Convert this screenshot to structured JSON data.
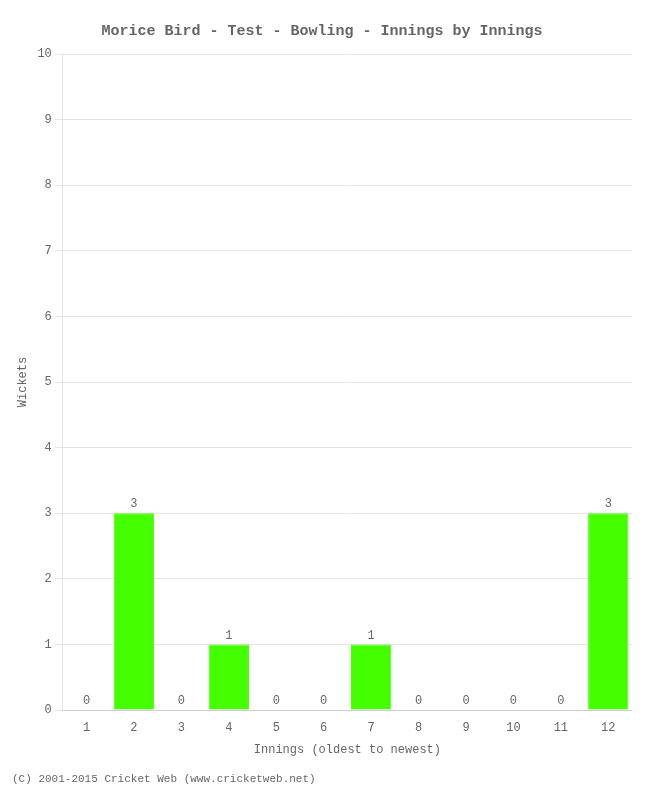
{
  "chart_data": {
    "type": "bar",
    "title": "Morice Bird - Test - Bowling - Innings by Innings",
    "x_label": "Innings (oldest to newest)",
    "y_label": "Wickets",
    "categories": [
      "1",
      "2",
      "3",
      "4",
      "5",
      "6",
      "7",
      "8",
      "9",
      "10",
      "11",
      "12"
    ],
    "values": [
      0,
      3,
      0,
      1,
      0,
      0,
      1,
      0,
      0,
      0,
      0,
      3
    ],
    "color": "#44ff00",
    "ylim": [
      0,
      10
    ],
    "yticks": [
      0,
      1,
      2,
      3,
      4,
      5,
      6,
      7,
      8,
      9,
      10
    ],
    "grid": true,
    "data_labels": true,
    "footer": "(C) 2001-2015 Cricket Web (www.cricketweb.net)"
  }
}
